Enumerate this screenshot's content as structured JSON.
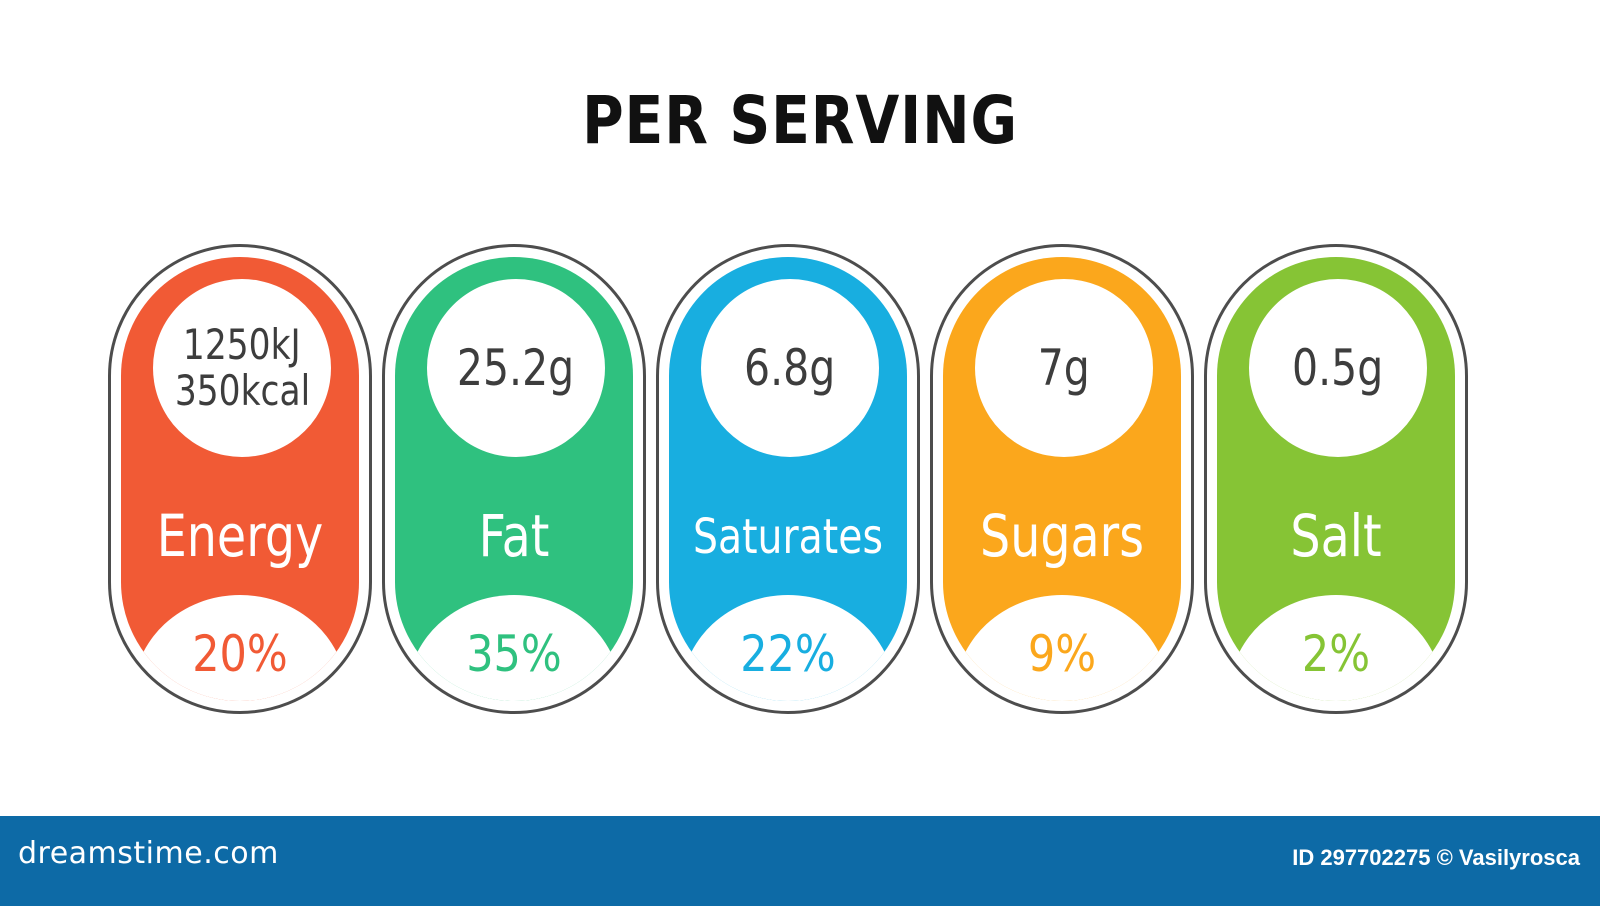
{
  "title": "PER SERVING",
  "labels": [
    {
      "amount_line1": "1250kJ",
      "amount_line2": "350kcal",
      "name": "Energy",
      "percent": "20%",
      "color": "#f15a35"
    },
    {
      "amount_line1": "25.2g",
      "amount_line2": "",
      "name": "Fat",
      "percent": "35%",
      "color": "#2fc17f"
    },
    {
      "amount_line1": "6.8g",
      "amount_line2": "",
      "name": "Saturates",
      "percent": "22%",
      "color": "#18aee0"
    },
    {
      "amount_line1": "7g",
      "amount_line2": "",
      "name": "Sugars",
      "percent": "9%",
      "color": "#fba71c"
    },
    {
      "amount_line1": "0.5g",
      "amount_line2": "",
      "name": "Salt",
      "percent": "2%",
      "color": "#86c435"
    }
  ],
  "footer": {
    "brand": "dreamstime.com",
    "credit": "ID 297702275 © Vasilyrosca",
    "color": "#0d6aa6"
  },
  "outline_color": "#4d4d4d"
}
